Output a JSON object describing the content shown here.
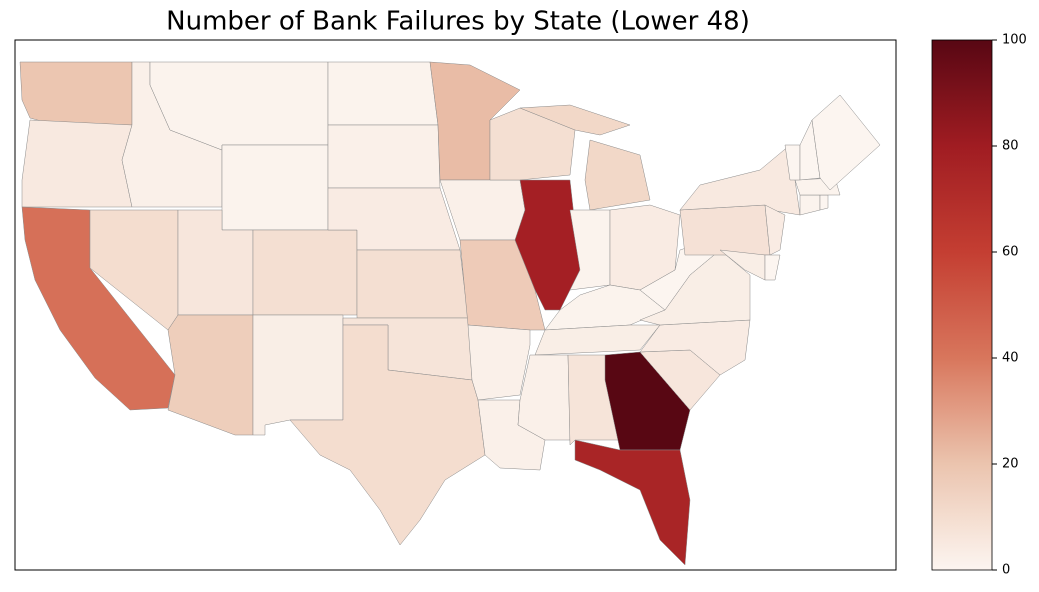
{
  "chart_data": {
    "type": "choropleth",
    "title": "Number of Bank Failures by State (Lower 48)",
    "values": [
      19,
      5,
      42,
      10,
      2,
      1,
      1,
      6,
      9,
      16,
      3,
      1,
      2,
      4,
      9,
      7,
      10,
      22,
      2,
      17,
      2,
      2,
      9,
      78,
      12,
      1,
      4,
      1,
      3,
      2,
      7,
      100,
      75,
      6,
      4,
      3,
      0,
      8,
      5,
      3,
      0,
      4,
      1,
      0,
      1,
      0,
      0,
      0
    ],
    "clim": [
      0,
      100
    ],
    "cticks": [
      0,
      20,
      40,
      60,
      80,
      100
    ]
  }
}
